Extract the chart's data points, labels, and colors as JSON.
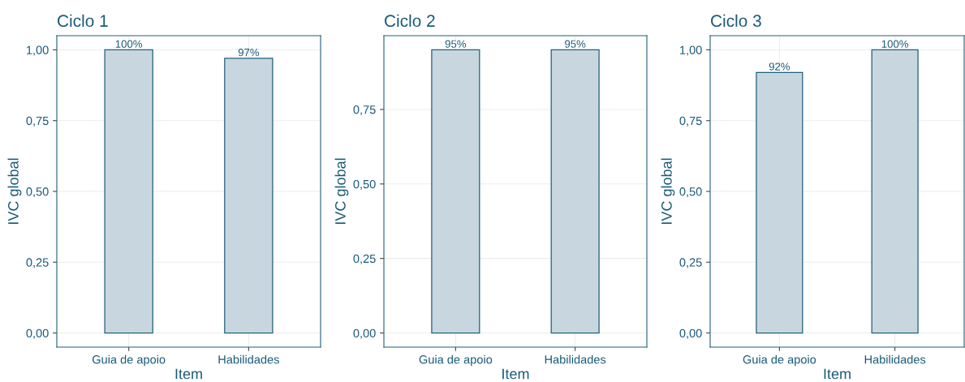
{
  "chart_data": [
    {
      "type": "bar",
      "title": "Ciclo 1",
      "xlabel": "Item",
      "ylabel": "IVC global",
      "categories": [
        "Guia de apoio",
        "Habilidades"
      ],
      "values": [
        1.0,
        0.97
      ],
      "value_labels": [
        "100%",
        "97%"
      ],
      "color": "#c8d7df",
      "ylim": [
        -0.05,
        1.05
      ],
      "yticks": [
        {
          "value": 0,
          "label": "0,00"
        },
        {
          "value": 0.25,
          "label": "0,25"
        },
        {
          "value": 0.5,
          "label": "0,50"
        },
        {
          "value": 0.75,
          "label": "0,75"
        },
        {
          "value": 1.0,
          "label": "1,00"
        }
      ],
      "grid": true
    },
    {
      "type": "bar",
      "title": "Ciclo 2",
      "xlabel": "Item",
      "ylabel": "IVC global",
      "categories": [
        "Guia de apoio",
        "Habilidades"
      ],
      "values": [
        0.95,
        0.95
      ],
      "value_labels": [
        "95%",
        "95%"
      ],
      "color": "#c8d7df",
      "ylim": [
        -0.0475,
        0.9975
      ],
      "yticks": [
        {
          "value": 0,
          "label": "0,00"
        },
        {
          "value": 0.25,
          "label": "0,25"
        },
        {
          "value": 0.5,
          "label": "0,50"
        },
        {
          "value": 0.75,
          "label": "0,75"
        }
      ],
      "grid": true
    },
    {
      "type": "bar",
      "title": "Ciclo 3",
      "xlabel": "Item",
      "ylabel": "IVC global",
      "categories": [
        "Guia de apoio",
        "Habilidades"
      ],
      "values": [
        0.92,
        1.0
      ],
      "value_labels": [
        "92%",
        "100%"
      ],
      "color": "#c8d7df",
      "ylim": [
        -0.05,
        1.05
      ],
      "yticks": [
        {
          "value": 0,
          "label": "0,00"
        },
        {
          "value": 0.25,
          "label": "0,25"
        },
        {
          "value": 0.5,
          "label": "0,50"
        },
        {
          "value": 0.75,
          "label": "0,75"
        },
        {
          "value": 1.0,
          "label": "1,00"
        }
      ],
      "grid": true
    }
  ]
}
